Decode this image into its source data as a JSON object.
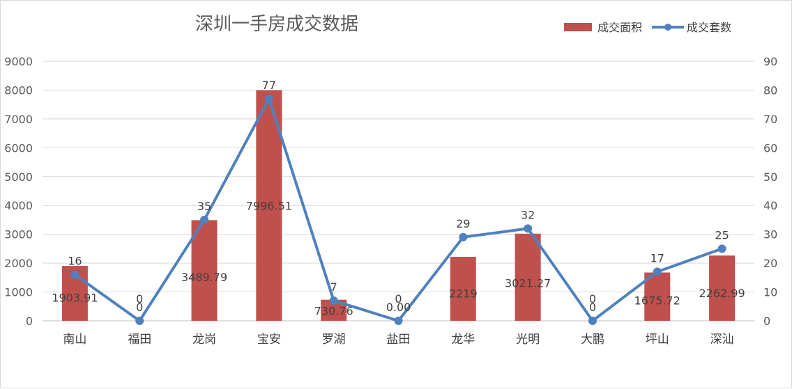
{
  "chart_data": {
    "type": "bar+line",
    "title": "深圳一手房成交数据",
    "categories": [
      "南山",
      "福田",
      "龙岗",
      "宝安",
      "罗湖",
      "盐田",
      "龙华",
      "光明",
      "大鹏",
      "坪山",
      "深汕"
    ],
    "series": [
      {
        "name": "成交面积",
        "type": "bar",
        "axis": "left",
        "color": "#c0504d",
        "values": [
          1903.91,
          0,
          3489.79,
          7996.51,
          730.76,
          0,
          2219,
          3021.27,
          0,
          1675.72,
          2262.99
        ],
        "labels": [
          "1903.91",
          "0",
          "3489.79",
          "7996.51",
          "730.76",
          "0.00",
          "2219",
          "3021.27",
          "0",
          "1675.72",
          "2262.99"
        ]
      },
      {
        "name": "成交套数",
        "type": "line",
        "axis": "right",
        "color": "#4f81bd",
        "values": [
          16,
          0,
          35,
          77,
          7,
          0,
          29,
          32,
          0,
          17,
          25
        ],
        "labels": [
          "16",
          "0",
          "35",
          "77",
          "7",
          "0",
          "29",
          "32",
          "0",
          "17",
          "25"
        ]
      }
    ],
    "y_left": {
      "min": 0,
      "max": 9000,
      "step": 1000,
      "ticks": [
        "0",
        "1000",
        "2000",
        "3000",
        "4000",
        "5000",
        "6000",
        "7000",
        "8000",
        "9000"
      ]
    },
    "y_right": {
      "min": 0,
      "max": 90,
      "step": 10,
      "ticks": [
        "0",
        "10",
        "20",
        "30",
        "40",
        "50",
        "60",
        "70",
        "80",
        "90"
      ]
    },
    "grid": true,
    "legend": "top-right"
  }
}
